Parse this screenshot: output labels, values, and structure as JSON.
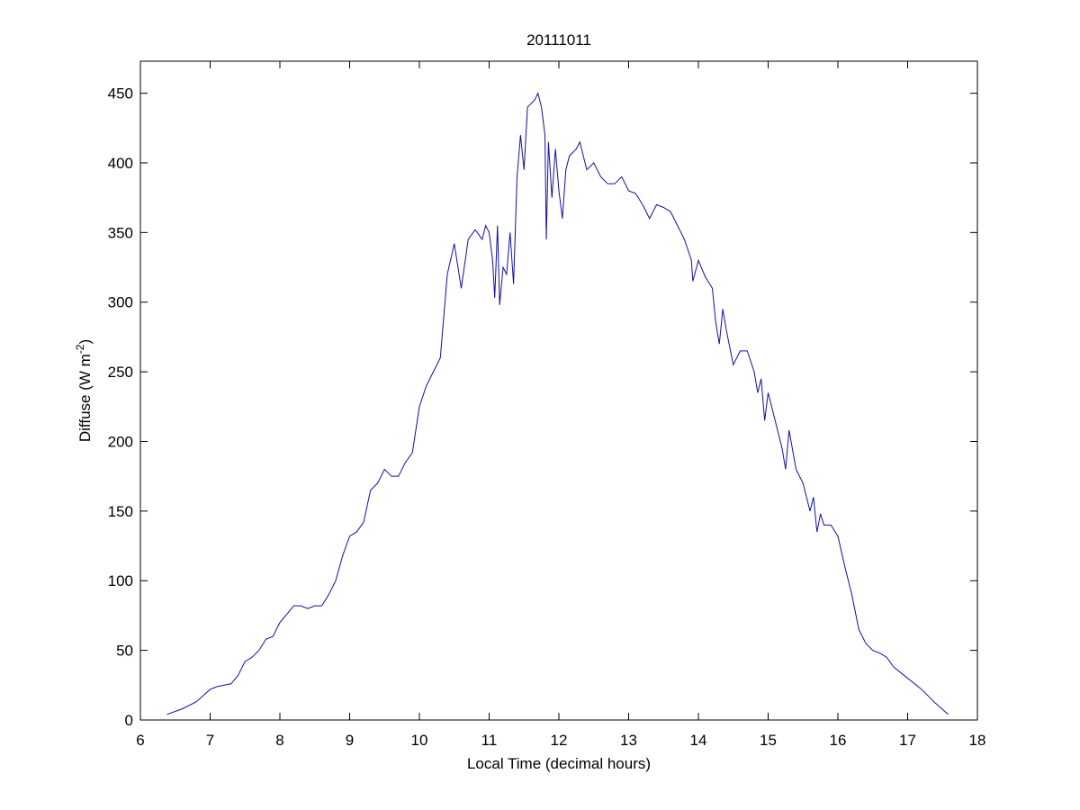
{
  "chart_data": {
    "type": "line",
    "title": "20111011",
    "xlabel": "Local Time (decimal hours)",
    "ylabel": {
      "text": "Diffuse (W m",
      "superscript": "-2",
      "suffix": ")"
    },
    "xlim": [
      6,
      18
    ],
    "xticks": [
      6,
      7,
      8,
      9,
      10,
      11,
      12,
      13,
      14,
      15,
      16,
      17,
      18
    ],
    "ylim": [
      0,
      473
    ],
    "yticks": [
      0,
      50,
      100,
      150,
      200,
      250,
      300,
      350,
      400,
      450
    ],
    "grid": false,
    "series": [
      {
        "color": "#1010a0",
        "x": [
          6.38,
          6.6,
          6.8,
          7.0,
          7.1,
          7.3,
          7.4,
          7.5,
          7.6,
          7.7,
          7.8,
          7.9,
          8.0,
          8.1,
          8.2,
          8.3,
          8.4,
          8.5,
          8.6,
          8.7,
          8.8,
          8.9,
          9.0,
          9.1,
          9.2,
          9.3,
          9.4,
          9.5,
          9.6,
          9.7,
          9.8,
          9.9,
          10.0,
          10.1,
          10.2,
          10.3,
          10.4,
          10.5,
          10.6,
          10.7,
          10.8,
          10.9,
          10.95,
          11.0,
          11.05,
          11.08,
          11.12,
          11.15,
          11.2,
          11.25,
          11.3,
          11.35,
          11.4,
          11.45,
          11.5,
          11.55,
          11.65,
          11.7,
          11.75,
          11.8,
          11.82,
          11.85,
          11.9,
          11.95,
          12.0,
          12.05,
          12.1,
          12.15,
          12.25,
          12.3,
          12.4,
          12.5,
          12.6,
          12.7,
          12.8,
          12.9,
          13.0,
          13.1,
          13.2,
          13.3,
          13.4,
          13.5,
          13.6,
          13.7,
          13.8,
          13.9,
          13.92,
          14.0,
          14.1,
          14.2,
          14.25,
          14.3,
          14.35,
          14.4,
          14.5,
          14.6,
          14.7,
          14.8,
          14.85,
          14.9,
          14.95,
          15.0,
          15.1,
          15.2,
          15.25,
          15.3,
          15.4,
          15.5,
          15.6,
          15.65,
          15.7,
          15.75,
          15.8,
          15.9,
          16.0,
          16.1,
          16.2,
          16.3,
          16.4,
          16.5,
          16.6,
          16.7,
          16.8,
          17.0,
          17.2,
          17.4,
          17.58
        ],
        "values": [
          4,
          8,
          13,
          22,
          24,
          26,
          32,
          42,
          45,
          50,
          58,
          60,
          70,
          76,
          82,
          82,
          80,
          82,
          82,
          90,
          100,
          118,
          132,
          135,
          142,
          165,
          170,
          180,
          175,
          175,
          185,
          192,
          225,
          240,
          250,
          260,
          320,
          342,
          310,
          345,
          352,
          345,
          355,
          350,
          330,
          303,
          355,
          298,
          325,
          320,
          350,
          313,
          390,
          420,
          395,
          440,
          445,
          450,
          440,
          420,
          345,
          415,
          375,
          410,
          380,
          360,
          395,
          405,
          410,
          415,
          395,
          400,
          390,
          385,
          385,
          390,
          380,
          378,
          370,
          360,
          370,
          368,
          365,
          355,
          345,
          330,
          315,
          330,
          318,
          310,
          285,
          270,
          295,
          280,
          255,
          265,
          265,
          250,
          235,
          245,
          215,
          235,
          215,
          195,
          180,
          208,
          180,
          170,
          150,
          160,
          135,
          148,
          140,
          140,
          132,
          110,
          90,
          65,
          55,
          50,
          48,
          45,
          38,
          30,
          22,
          12,
          4
        ]
      }
    ]
  }
}
